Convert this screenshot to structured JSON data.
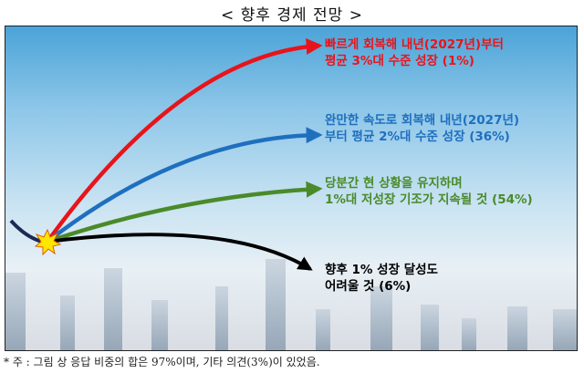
{
  "title": "< 향후 경제 전망 >",
  "scenarios": [
    {
      "line1": "빠르게 회복해 내년(2027년)부터",
      "line2": "평균 3%대 수준 성장 (1%)",
      "color": "#e8141b",
      "share_pct": 1
    },
    {
      "line1": "완만한 속도로 회복해 내년(2027년)",
      "line2": "부터 평균 2%대 수준 성장 (36%)",
      "color": "#1f6fbf",
      "share_pct": 36
    },
    {
      "line1": "당분간 현 상황을 유지하며",
      "line2": "1%대 저성장 기조가 지속될 것 (54%)",
      "color": "#4a8a2a",
      "share_pct": 54
    },
    {
      "line1": "향후 1% 성장 달성도",
      "line2": "어려울 것 (6%)",
      "color": "#000000",
      "share_pct": 6
    }
  ],
  "note": "* 주 : 그림 상 응답 비중의 합은 97%이며, 기타 의견(3%)이 있었음."
}
